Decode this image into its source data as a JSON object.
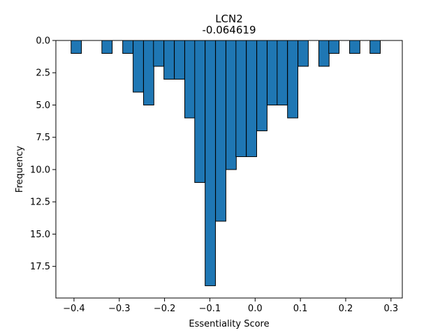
{
  "chart_data": {
    "type": "bar",
    "title": "LCN2",
    "subtitle": "-0.064619",
    "xlabel": "Essentiality Score",
    "ylabel": "Frequency",
    "y_inverted": true,
    "xlim": [
      -0.44,
      0.325
    ],
    "ylim": [
      0,
      19.95
    ],
    "bin_width": 0.0228,
    "x_ticks": [
      -0.4,
      -0.3,
      -0.2,
      -0.1,
      0.0,
      0.1,
      0.2,
      0.3
    ],
    "x_tick_labels": [
      "−0.4",
      "−0.3",
      "−0.2",
      "−0.1",
      "0.0",
      "0.1",
      "0.2",
      "0.3"
    ],
    "y_ticks": [
      0,
      2.5,
      5,
      7.5,
      10,
      12.5,
      15,
      17.5
    ],
    "y_tick_labels": [
      "0.0",
      "2.5",
      "5.0",
      "7.5",
      "10.0",
      "12.5",
      "15.0",
      "17.5"
    ],
    "bins": [
      {
        "x": -0.395,
        "count": 1
      },
      {
        "x": -0.327,
        "count": 1
      },
      {
        "x": -0.281,
        "count": 1
      },
      {
        "x": -0.258,
        "count": 4
      },
      {
        "x": -0.235,
        "count": 5
      },
      {
        "x": -0.213,
        "count": 2
      },
      {
        "x": -0.19,
        "count": 3
      },
      {
        "x": -0.167,
        "count": 3
      },
      {
        "x": -0.144,
        "count": 6
      },
      {
        "x": -0.122,
        "count": 11
      },
      {
        "x": -0.099,
        "count": 19
      },
      {
        "x": -0.076,
        "count": 14
      },
      {
        "x": -0.053,
        "count": 10
      },
      {
        "x": -0.031,
        "count": 9
      },
      {
        "x": -0.008,
        "count": 9
      },
      {
        "x": 0.015,
        "count": 7
      },
      {
        "x": 0.038,
        "count": 5
      },
      {
        "x": 0.06,
        "count": 5
      },
      {
        "x": 0.083,
        "count": 6
      },
      {
        "x": 0.106,
        "count": 2
      },
      {
        "x": 0.152,
        "count": 2
      },
      {
        "x": 0.174,
        "count": 1
      },
      {
        "x": 0.22,
        "count": 1
      },
      {
        "x": 0.265,
        "count": 1
      }
    ],
    "colors": {
      "bar_fill": "#1f77b4",
      "bar_edge": "#000000",
      "axes": "#000000"
    },
    "grid": false,
    "legend": "none"
  }
}
